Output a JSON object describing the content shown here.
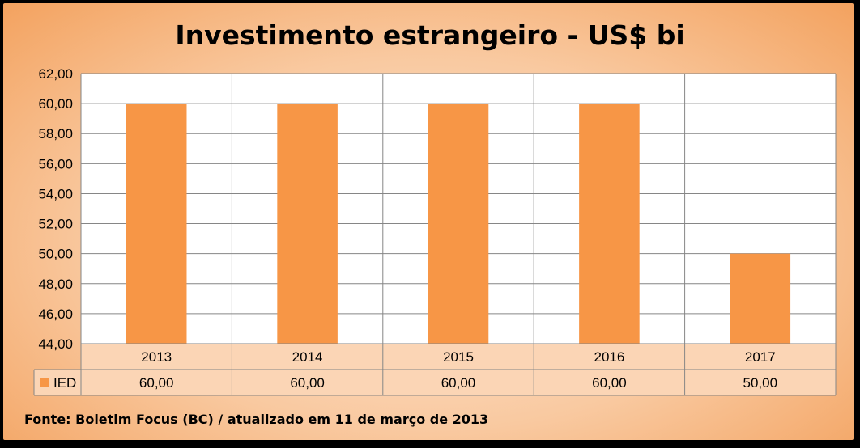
{
  "colors": {
    "bar": "#f79646",
    "grid": "#868686",
    "plot_bg": "#ffffff",
    "table_bg": "#fbd5b5"
  },
  "chart_data": {
    "type": "bar",
    "title": "Investimento estrangeiro - US$ bi",
    "categories": [
      "2013",
      "2014",
      "2015",
      "2016",
      "2017"
    ],
    "series": [
      {
        "name": "IED",
        "values": [
          60.0,
          60.0,
          60.0,
          60.0,
          50.0
        ]
      }
    ],
    "value_labels": [
      "60,00",
      "60,00",
      "60,00",
      "60,00",
      "50,00"
    ],
    "ylim": [
      44,
      62
    ],
    "yticks": [
      "44,00",
      "46,00",
      "48,00",
      "50,00",
      "52,00",
      "54,00",
      "56,00",
      "58,00",
      "60,00",
      "62,00"
    ],
    "grid": true,
    "legend": "data-table"
  },
  "footer": {
    "source": "Fonte: Boletim Focus (BC) / atualizado  em 11 de março de 2013"
  }
}
